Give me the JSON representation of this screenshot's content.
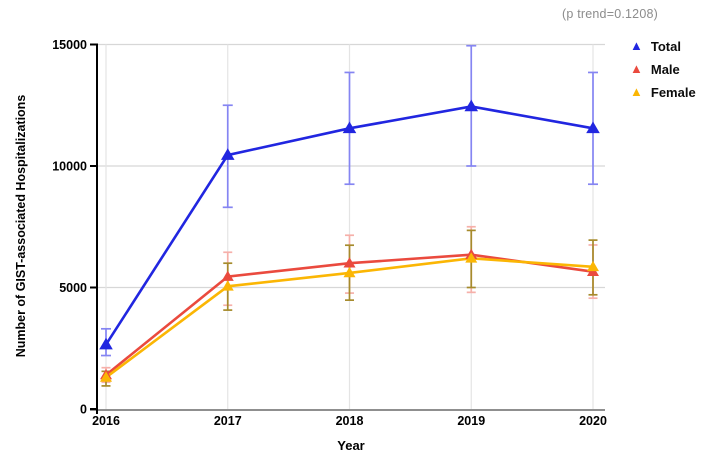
{
  "annotation": {
    "text": "(p trend=0.1208)"
  },
  "colors": {
    "total": "#2126e0",
    "male": "#ea4a3e",
    "female": "#fbb604",
    "total_err": "#8585f2",
    "male_err": "#f6b0aa",
    "female_err": "#a68b2c",
    "grid": "#d7d7d7",
    "grid_vertical": "#e4e4e4",
    "x_axis": "#8f8f8f",
    "y_axis": "#000000",
    "tick_text": "#000000",
    "annotation_text": "#8c8c8c"
  },
  "chart_data": {
    "type": "line",
    "x": [
      "2016",
      "2017",
      "2018",
      "2019",
      "2020"
    ],
    "xlabel": "Year",
    "ylabel": "Number of GIST-associated Hospitalizations",
    "ylim": [
      0,
      15000
    ],
    "yticks": [
      0,
      5000,
      10000,
      15000
    ],
    "grid": true,
    "legend_position": "top-right",
    "error_bars": true,
    "series": [
      {
        "name": "Total",
        "color_key": "total",
        "err_color_key": "total_err",
        "values": [
          2650,
          10450,
          11550,
          12450,
          11550
        ],
        "err_low": [
          2200,
          8300,
          9250,
          10000,
          9250
        ],
        "err_high": [
          3300,
          12500,
          13850,
          14950,
          13850
        ]
      },
      {
        "name": "Male",
        "color_key": "male",
        "err_color_key": "male_err",
        "values": [
          1400,
          5450,
          6000,
          6350,
          5650
        ],
        "err_low": [
          1100,
          4270,
          4770,
          4800,
          4560
        ],
        "err_high": [
          1700,
          6450,
          7150,
          7500,
          6750
        ]
      },
      {
        "name": "Female",
        "color_key": "female",
        "err_color_key": "female_err",
        "values": [
          1300,
          5050,
          5600,
          6200,
          5850
        ],
        "err_low": [
          950,
          4070,
          4480,
          5000,
          4700
        ],
        "err_high": [
          1550,
          6000,
          6740,
          7350,
          6950
        ]
      }
    ]
  }
}
